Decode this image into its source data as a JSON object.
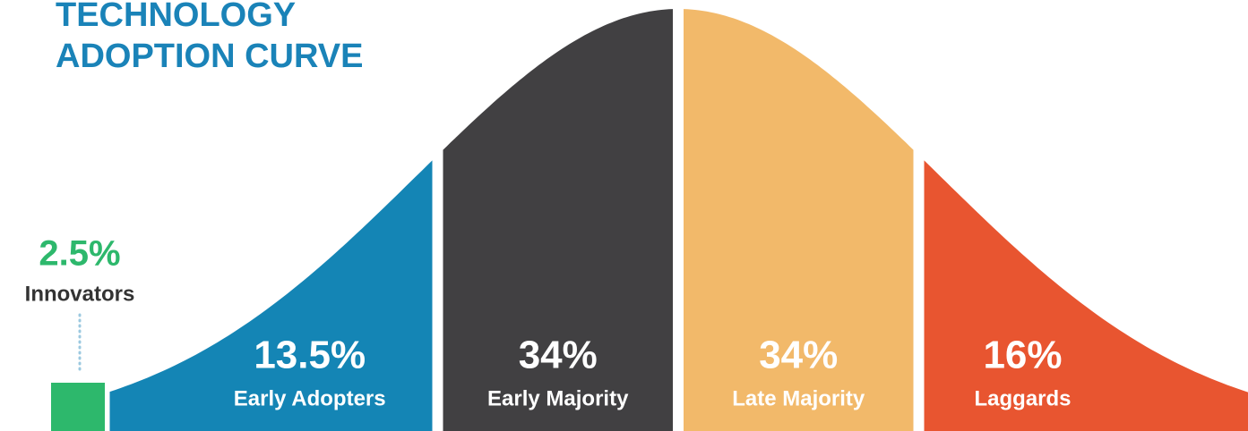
{
  "chart_data": {
    "type": "adoption_curve",
    "title": "TECHNOLOGY ADOPTION CURVE",
    "categories": [
      "Innovators",
      "Early Adopters",
      "Early Majority",
      "Late Majority",
      "Laggards"
    ],
    "values": [
      2.5,
      13.5,
      34,
      34,
      16
    ],
    "value_labels": [
      "2.5%",
      "13.5%",
      "34%",
      "34%",
      "16%"
    ],
    "colors": [
      "#2db86c",
      "#1485b5",
      "#414042",
      "#f2b96a",
      "#e85530"
    ]
  }
}
